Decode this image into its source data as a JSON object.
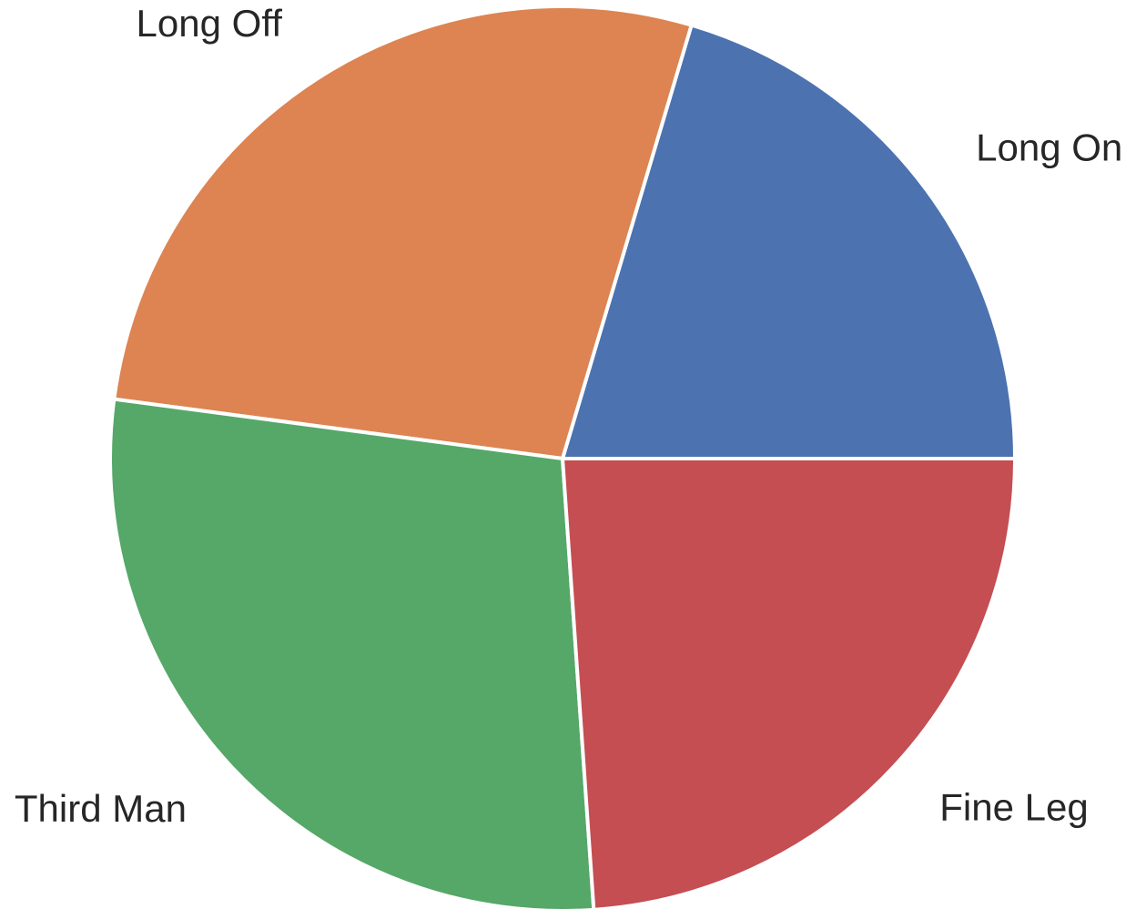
{
  "chart_data": {
    "type": "pie",
    "title": "",
    "start_angle_deg": 0,
    "direction": "counterclockwise",
    "slices": [
      {
        "label": "Long On",
        "value": 20.4,
        "color": "#4C72B0"
      },
      {
        "label": "Long Off",
        "value": 27.5,
        "color": "#DD8452"
      },
      {
        "label": "Third Man",
        "value": 28.2,
        "color": "#55A868"
      },
      {
        "label": "Fine Leg",
        "value": 23.9,
        "color": "#C44E52"
      }
    ]
  }
}
